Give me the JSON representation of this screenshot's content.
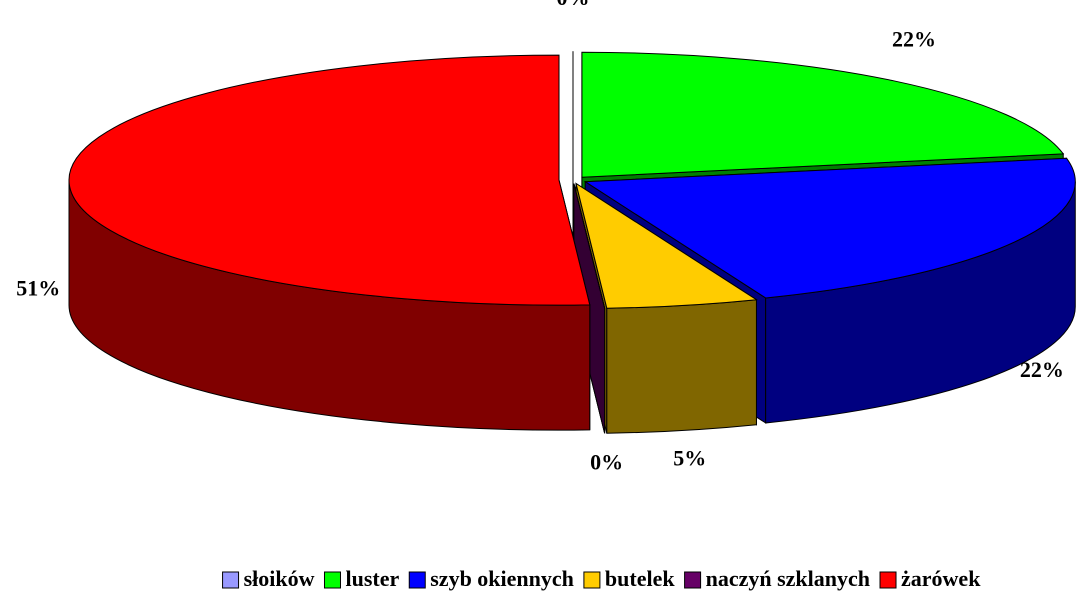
{
  "chart_data": {
    "type": "pie3d",
    "categories": [
      "słoików",
      "luster",
      "szyb okiennych",
      "butelek",
      "naczyń szklanych",
      "żarówek"
    ],
    "values": [
      0,
      22,
      22,
      5,
      0,
      51
    ],
    "value_labels": [
      "0%",
      "22%",
      "22%",
      "5%",
      "0%",
      "51%"
    ],
    "colors": [
      "#9999ff",
      "#00ff00",
      "#0000ff",
      "#ffcc00",
      "#660066",
      "#ff0000"
    ],
    "legend": "bottom"
  }
}
